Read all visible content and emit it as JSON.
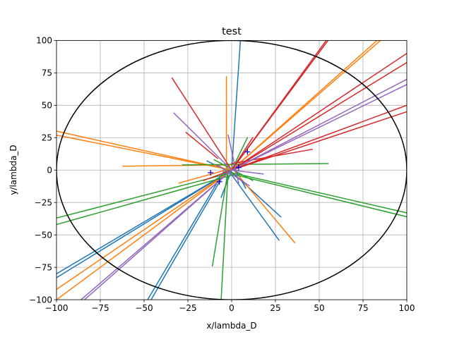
{
  "chart_data": {
    "type": "line",
    "title": "test",
    "xlabel": "x/lambda_D",
    "ylabel": "y/lambda_D",
    "xlim": [
      -100,
      100
    ],
    "ylim": [
      -100,
      100
    ],
    "grid": true,
    "x_ticks": [
      -100,
      -75,
      -50,
      -25,
      0,
      25,
      50,
      75,
      100
    ],
    "y_ticks": [
      -100,
      -75,
      -50,
      -25,
      0,
      25,
      50,
      75,
      100
    ],
    "x_tick_labels": [
      "−100",
      "−75",
      "−50",
      "−25",
      "0",
      "25",
      "50",
      "75",
      "100"
    ],
    "y_tick_labels": [
      "−100",
      "−75",
      "−50",
      "−25",
      "0",
      "25",
      "50",
      "75",
      "100"
    ],
    "circle": {
      "center": [
        0,
        0
      ],
      "radius": 100,
      "color": "#000000"
    },
    "colors": {
      "blue": "#1f77b4",
      "orange": "#ff7f0e",
      "green": "#2ca02c",
      "red": "#d62728",
      "purple": "#9467bd",
      "marker": "#0000cc"
    },
    "segments": [
      {
        "color": "blue",
        "points": [
          [
            0,
            0
          ],
          [
            5,
            100
          ]
        ]
      },
      {
        "color": "blue",
        "points": [
          [
            0,
            0
          ],
          [
            -100,
            -80
          ]
        ]
      },
      {
        "color": "blue",
        "points": [
          [
            0,
            0
          ],
          [
            -100,
            -83
          ]
        ]
      },
      {
        "color": "blue",
        "points": [
          [
            -3,
            0
          ],
          [
            -46,
            -100
          ]
        ]
      },
      {
        "color": "blue",
        "points": [
          [
            -4,
            0
          ],
          [
            -48,
            -100
          ]
        ]
      },
      {
        "color": "blue",
        "points": [
          [
            -2,
            1
          ],
          [
            28,
            -36
          ]
        ]
      },
      {
        "color": "blue",
        "points": [
          [
            -3,
            2
          ],
          [
            27,
            -54
          ]
        ]
      },
      {
        "color": "blue",
        "points": [
          [
            0,
            0
          ],
          [
            -6,
            -21
          ]
        ]
      },
      {
        "color": "blue",
        "points": [
          [
            2,
            1
          ],
          [
            8,
            -14
          ]
        ]
      },
      {
        "color": "blue",
        "points": [
          [
            -2,
            -1
          ],
          [
            -14,
            7
          ]
        ]
      },
      {
        "color": "orange",
        "points": [
          [
            0,
            0
          ],
          [
            -100,
            30
          ]
        ]
      },
      {
        "color": "orange",
        "points": [
          [
            0,
            0
          ],
          [
            -100,
            27
          ]
        ]
      },
      {
        "color": "orange",
        "points": [
          [
            0,
            0
          ],
          [
            -100,
            -92
          ]
        ]
      },
      {
        "color": "orange",
        "points": [
          [
            0,
            0
          ],
          [
            -100,
            -100
          ]
        ]
      },
      {
        "color": "orange",
        "points": [
          [
            0,
            0
          ],
          [
            85,
            100
          ]
        ]
      },
      {
        "color": "orange",
        "points": [
          [
            0,
            0
          ],
          [
            83,
            100
          ]
        ]
      },
      {
        "color": "orange",
        "points": [
          [
            -3,
            72
          ],
          [
            -3,
            0
          ]
        ]
      },
      {
        "color": "orange",
        "points": [
          [
            0,
            2
          ],
          [
            36,
            -56
          ]
        ]
      },
      {
        "color": "orange",
        "points": [
          [
            -62,
            3
          ],
          [
            0,
            4
          ]
        ]
      },
      {
        "color": "orange",
        "points": [
          [
            -30,
            -10
          ],
          [
            10,
            5
          ]
        ]
      },
      {
        "color": "green",
        "points": [
          [
            -100,
            -37
          ],
          [
            0,
            -2
          ]
        ]
      },
      {
        "color": "green",
        "points": [
          [
            -100,
            -42
          ],
          [
            0,
            -4
          ]
        ]
      },
      {
        "color": "green",
        "points": [
          [
            0,
            -2
          ],
          [
            100,
            -33
          ]
        ]
      },
      {
        "color": "green",
        "points": [
          [
            0,
            -3
          ],
          [
            100,
            -36
          ]
        ]
      },
      {
        "color": "green",
        "points": [
          [
            -28,
            4
          ],
          [
            55,
            5
          ]
        ]
      },
      {
        "color": "green",
        "points": [
          [
            -11,
            -74
          ],
          [
            -2,
            0
          ]
        ]
      },
      {
        "color": "green",
        "points": [
          [
            -6,
            -100
          ],
          [
            -2,
            0
          ]
        ]
      },
      {
        "color": "green",
        "points": [
          [
            -10,
            8
          ],
          [
            12,
            -8
          ]
        ]
      },
      {
        "color": "green",
        "points": [
          [
            0,
            0
          ],
          [
            9,
            25
          ]
        ]
      },
      {
        "color": "red",
        "points": [
          [
            0,
            0
          ],
          [
            55,
            100
          ]
        ]
      },
      {
        "color": "red",
        "points": [
          [
            0,
            0
          ],
          [
            54,
            100
          ]
        ]
      },
      {
        "color": "red",
        "points": [
          [
            0,
            0
          ],
          [
            100,
            90
          ]
        ]
      },
      {
        "color": "red",
        "points": [
          [
            0,
            0
          ],
          [
            100,
            83
          ]
        ]
      },
      {
        "color": "red",
        "points": [
          [
            0,
            0
          ],
          [
            100,
            50
          ]
        ]
      },
      {
        "color": "red",
        "points": [
          [
            0,
            0
          ],
          [
            100,
            45
          ]
        ]
      },
      {
        "color": "red",
        "points": [
          [
            -34,
            71
          ],
          [
            0,
            0
          ]
        ]
      },
      {
        "color": "red",
        "points": [
          [
            -26,
            29
          ],
          [
            -8,
            9
          ]
        ]
      },
      {
        "color": "red",
        "points": [
          [
            0,
            5
          ],
          [
            46,
            16
          ]
        ]
      },
      {
        "color": "red",
        "points": [
          [
            -16,
            -8
          ],
          [
            12,
            6
          ]
        ]
      },
      {
        "color": "red",
        "points": [
          [
            0,
            0
          ],
          [
            12,
            25
          ]
        ]
      },
      {
        "color": "purple",
        "points": [
          [
            0,
            0
          ],
          [
            100,
            70
          ]
        ]
      },
      {
        "color": "purple",
        "points": [
          [
            0,
            0
          ],
          [
            100,
            66
          ]
        ]
      },
      {
        "color": "purple",
        "points": [
          [
            0,
            0
          ],
          [
            -84,
            -100
          ]
        ]
      },
      {
        "color": "purple",
        "points": [
          [
            0,
            0
          ],
          [
            -86,
            -100
          ]
        ]
      },
      {
        "color": "purple",
        "points": [
          [
            -33,
            44
          ],
          [
            0,
            0
          ]
        ]
      },
      {
        "color": "purple",
        "points": [
          [
            -2,
            27
          ],
          [
            4,
            -10
          ]
        ]
      },
      {
        "color": "purple",
        "points": [
          [
            0,
            0
          ],
          [
            18,
            -3
          ]
        ]
      },
      {
        "color": "purple",
        "points": [
          [
            -8,
            4
          ],
          [
            10,
            -12
          ]
        ]
      }
    ],
    "markers": [
      {
        "x": -12,
        "y": -2
      },
      {
        "x": 9,
        "y": 14
      },
      {
        "x": -7,
        "y": -9
      },
      {
        "x": 4,
        "y": 2
      }
    ]
  }
}
